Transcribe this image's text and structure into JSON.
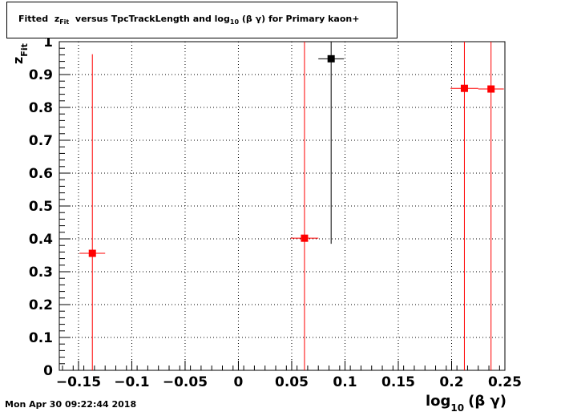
{
  "title": {
    "prefix": "Fitted",
    "z_symbol": "z",
    "z_sub": "Fit",
    "middle": "versus TpcTrackLength and log",
    "log_sub": "10",
    "suffix": "(β γ) for Primary kaon+"
  },
  "footer": {
    "timestamp": "Mon Apr 30 09:22:44 2018"
  },
  "colors": {
    "series_red": "#ff0000",
    "series_black": "#000000",
    "grid": "#000000"
  },
  "chart_data": {
    "type": "scatter",
    "xlabel": {
      "main": "log",
      "sub": "10",
      "tail": "(β γ)"
    },
    "ylabel": {
      "main": "z",
      "sub": "Fit"
    },
    "xlim": [
      -0.168,
      0.25
    ],
    "ylim": [
      0,
      1.0
    ],
    "xticks": [
      {
        "v": -0.15,
        "label": "−0.15"
      },
      {
        "v": -0.1,
        "label": "−0.1"
      },
      {
        "v": -0.05,
        "label": "−0.05"
      },
      {
        "v": 0,
        "label": "0"
      },
      {
        "v": 0.05,
        "label": "0.05"
      },
      {
        "v": 0.1,
        "label": "0.1"
      },
      {
        "v": 0.15,
        "label": "0.15"
      },
      {
        "v": 0.2,
        "label": "0.2"
      },
      {
        "v": 0.25,
        "label": "0.25"
      }
    ],
    "yticks": [
      {
        "v": 0,
        "label": "0"
      },
      {
        "v": 0.1,
        "label": "0.1"
      },
      {
        "v": 0.2,
        "label": "0.2"
      },
      {
        "v": 0.3,
        "label": "0.3"
      },
      {
        "v": 0.4,
        "label": "0.4"
      },
      {
        "v": 0.5,
        "label": "0.5"
      },
      {
        "v": 0.6,
        "label": "0.6"
      },
      {
        "v": 0.7,
        "label": "0.7"
      },
      {
        "v": 0.8,
        "label": "0.8"
      },
      {
        "v": 0.9,
        "label": "0.9"
      },
      {
        "v": 1.0,
        "label": "1"
      }
    ],
    "grid": true,
    "series": [
      {
        "color": "#ff0000",
        "points": [
          {
            "x": -0.137,
            "y": 0.356,
            "xerr": 0.012,
            "ylow": 0,
            "yhigh": 0.962
          },
          {
            "x": 0.062,
            "y": 0.402,
            "xerr": 0.013,
            "ylow": 0,
            "yhigh": 1.0
          },
          {
            "x": 0.212,
            "y": 0.858,
            "xerr": 0.013,
            "ylow": 0,
            "yhigh": 1.0
          },
          {
            "x": 0.237,
            "y": 0.856,
            "xerr": 0.012,
            "ylow": 0,
            "yhigh": 1.0
          }
        ]
      },
      {
        "color": "#000000",
        "points": [
          {
            "x": 0.087,
            "y": 0.948,
            "xerr": 0.012,
            "ylow": 0.385,
            "yhigh": 1.0
          }
        ]
      }
    ]
  }
}
